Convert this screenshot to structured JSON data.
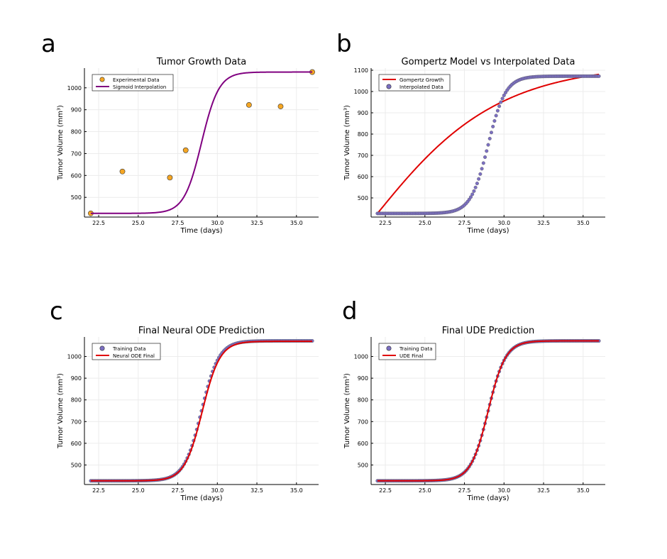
{
  "panel_letters": [
    "a",
    "b",
    "c",
    "d"
  ],
  "colors": {
    "orange": "#f5a623",
    "purple": "#800080",
    "red": "#e00000",
    "marker_purple": "#7b6fc2",
    "grid": "#ececec",
    "axis": "#000000"
  },
  "chart_data": [
    {
      "id": "a",
      "type": "scatter+line",
      "title": "Tumor Growth Data",
      "xlabel": "Time (days)",
      "ylabel": "Tumor Volume (mm³)",
      "xlim": [
        21.6,
        36.4
      ],
      "ylim": [
        410,
        1090
      ],
      "xticks": [
        22.5,
        25.0,
        27.5,
        30.0,
        32.5,
        35.0
      ],
      "xtick_labels": [
        "22.5",
        "25.0",
        "27.5",
        "30.0",
        "32.5",
        "35.0"
      ],
      "yticks": [
        500,
        600,
        700,
        800,
        900,
        1000
      ],
      "ytick_labels": [
        "500",
        "600",
        "700",
        "800",
        "900",
        "1000"
      ],
      "grid": true,
      "legend_position": "top-left",
      "series": [
        {
          "name": "Experimental Data",
          "kind": "scatter",
          "color": "#f5a623",
          "x": [
            22,
            24,
            27,
            28,
            32,
            34,
            36
          ],
          "y": [
            427,
            618,
            590,
            715,
            922,
            915,
            1072
          ]
        },
        {
          "name": "Sigmoid Interpolation",
          "kind": "line",
          "color": "#800080",
          "function": "sigmoid",
          "params": {
            "low": 427,
            "high": 1072,
            "mid": 29.0,
            "scale": 0.55
          },
          "x_range": [
            22,
            36
          ]
        }
      ]
    },
    {
      "id": "b",
      "type": "scatter+line",
      "title": "Gompertz Model vs Interpolated Data",
      "xlabel": "Time (days)",
      "ylabel": "Tumor Volume (mm³)",
      "xlim": [
        21.6,
        36.4
      ],
      "ylim": [
        410,
        1110
      ],
      "xticks": [
        22.5,
        25.0,
        27.5,
        30.0,
        32.5,
        35.0
      ],
      "xtick_labels": [
        "22.5",
        "25.0",
        "27.5",
        "30.0",
        "32.5",
        "35.0"
      ],
      "yticks": [
        500,
        600,
        700,
        800,
        900,
        1000,
        1100
      ],
      "ytick_labels": [
        "500",
        "600",
        "700",
        "800",
        "900",
        "1000",
        "1100"
      ],
      "grid": true,
      "legend_position": "top-left",
      "series": [
        {
          "name": "Gompertz Growth",
          "kind": "line",
          "color": "#e00000",
          "function": "gompertz",
          "params": {
            "start": 427,
            "K": 1130,
            "r": 0.22,
            "t0": 22
          },
          "x_range": [
            22,
            36
          ]
        },
        {
          "name": "Interpolated Data",
          "kind": "scatter",
          "color": "#7b6fc2",
          "function": "sigmoid",
          "params": {
            "low": 427,
            "high": 1072,
            "mid": 29.0,
            "scale": 0.55
          },
          "x_range": [
            22,
            36
          ],
          "n_points": 141
        }
      ]
    },
    {
      "id": "c",
      "type": "scatter+line",
      "title": "Final Neural ODE Prediction",
      "xlabel": "Time (days)",
      "ylabel": "Tumor Volume (mm³)",
      "xlim": [
        21.6,
        36.4
      ],
      "ylim": [
        410,
        1090
      ],
      "xticks": [
        22.5,
        25.0,
        27.5,
        30.0,
        32.5,
        35.0
      ],
      "xtick_labels": [
        "22.5",
        "25.0",
        "27.5",
        "30.0",
        "32.5",
        "35.0"
      ],
      "yticks": [
        500,
        600,
        700,
        800,
        900,
        1000
      ],
      "ytick_labels": [
        "500",
        "600",
        "700",
        "800",
        "900",
        "1000"
      ],
      "grid": true,
      "legend_position": "top-left",
      "series": [
        {
          "name": "Training Data",
          "kind": "scatter",
          "color": "#7b6fc2",
          "function": "sigmoid",
          "params": {
            "low": 427,
            "high": 1072,
            "mid": 29.0,
            "scale": 0.55
          },
          "x_range": [
            22,
            36
          ],
          "n_points": 141
        },
        {
          "name": "Neural ODE Final",
          "kind": "line",
          "color": "#e00000",
          "function": "sigmoid",
          "params": {
            "low": 427,
            "high": 1070,
            "mid": 29.05,
            "scale": 0.56
          },
          "x_range": [
            22,
            36
          ]
        }
      ]
    },
    {
      "id": "d",
      "type": "scatter+line",
      "title": "Final UDE Prediction",
      "xlabel": "Time (days)",
      "ylabel": "Tumor Volume (mm³)",
      "xlim": [
        21.6,
        36.4
      ],
      "ylim": [
        410,
        1090
      ],
      "xticks": [
        22.5,
        25.0,
        27.5,
        30.0,
        32.5,
        35.0
      ],
      "xtick_labels": [
        "22.5",
        "25.0",
        "27.5",
        "30.0",
        "32.5",
        "35.0"
      ],
      "yticks": [
        500,
        600,
        700,
        800,
        900,
        1000
      ],
      "ytick_labels": [
        "500",
        "600",
        "700",
        "800",
        "900",
        "1000"
      ],
      "grid": true,
      "legend_position": "top-left",
      "series": [
        {
          "name": "Training Data",
          "kind": "scatter",
          "color": "#7b6fc2",
          "function": "sigmoid",
          "params": {
            "low": 427,
            "high": 1072,
            "mid": 29.0,
            "scale": 0.55
          },
          "x_range": [
            22,
            36
          ],
          "n_points": 141
        },
        {
          "name": "UDE Final",
          "kind": "line",
          "color": "#e00000",
          "function": "sigmoid",
          "params": {
            "low": 427,
            "high": 1072,
            "mid": 29.0,
            "scale": 0.55
          },
          "x_range": [
            22,
            36
          ]
        }
      ]
    }
  ]
}
